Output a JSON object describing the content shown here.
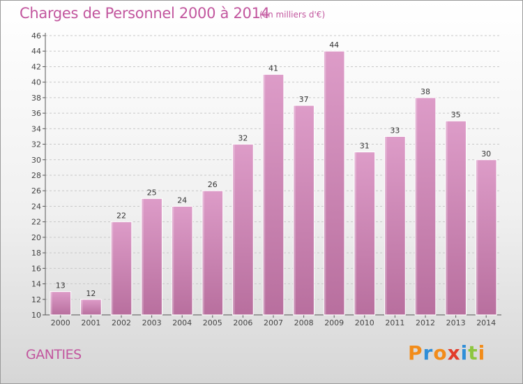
{
  "chart_data": {
    "type": "bar",
    "title": "Charges de Personnel 2000 à 2014",
    "subtitle": "(en milliers d'€)",
    "categories": [
      "2000",
      "2001",
      "2002",
      "2003",
      "2004",
      "2005",
      "2006",
      "2007",
      "2008",
      "2009",
      "2010",
      "2011",
      "2012",
      "2013",
      "2014"
    ],
    "values": [
      13,
      12,
      22,
      25,
      24,
      26,
      32,
      41,
      37,
      44,
      31,
      33,
      38,
      35,
      30
    ],
    "ylim": [
      10,
      46
    ],
    "yticks": [
      10,
      12,
      14,
      16,
      18,
      20,
      22,
      24,
      26,
      28,
      30,
      32,
      34,
      36,
      38,
      40,
      42,
      44,
      46
    ],
    "grid": "horizontal-dashed",
    "bar_color": "#dd9cc8",
    "bar_color_bottom": "#b86f9e"
  },
  "footer": {
    "commune": "GANTIES",
    "logo_text": "Proxiti"
  },
  "colors": {
    "accent": "#c2569e",
    "logo_letters": [
      "#f28c1a",
      "#2f8ed8",
      "#f28c1a",
      "#e23c2c",
      "#2f8ed8",
      "#8dc63f",
      "#f28c1a"
    ]
  }
}
